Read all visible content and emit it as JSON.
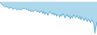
{
  "chart_data": {
    "type": "area",
    "values": [
      -1,
      -2,
      -3,
      -4,
      -5,
      -6,
      -5,
      -6,
      -7,
      -7,
      -6,
      -7,
      -8,
      -8,
      -7,
      -8,
      -9,
      -8,
      -9,
      -8,
      -9,
      -8,
      -7,
      -8,
      -7,
      -9,
      -8,
      -10,
      -9,
      -11,
      -10,
      -11,
      -10,
      -9,
      -10,
      -11,
      -10,
      -12,
      -11,
      -10,
      -13,
      -11,
      -14,
      -12,
      -13,
      -15,
      -12,
      -11,
      -13,
      -14,
      -12,
      -15,
      -13,
      -16,
      -14,
      -15,
      -17,
      -14,
      -16,
      -13,
      -15,
      -18,
      -16,
      -14,
      -17,
      -15,
      -19,
      -16,
      -18,
      -14,
      -16,
      -18,
      -15,
      -17,
      -19,
      -16,
      -20,
      -17,
      -19,
      -21,
      -18,
      -20,
      -22,
      -19,
      -21,
      -23,
      -20,
      -22,
      -24,
      -35,
      -28,
      -22
    ],
    "color": "#5bafd6",
    "ylim": [
      -36.75,
      2
    ],
    "grid": false,
    "tick_labels": false
  }
}
